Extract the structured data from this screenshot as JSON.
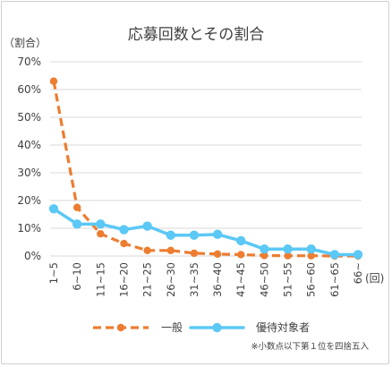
{
  "chart_data": {
    "type": "line",
    "title": "応募回数とその割合",
    "ylabel": "（割合）",
    "xlabel": "(回)",
    "categories": [
      "1~5",
      "6~10",
      "11~15",
      "16~20",
      "21~25",
      "26~30",
      "31~35",
      "36~40",
      "41~45",
      "46~50",
      "51~55",
      "56~60",
      "61~65",
      "66~"
    ],
    "ylim": [
      0,
      70
    ],
    "yticks": [
      "0%",
      "10%",
      "20%",
      "30%",
      "40%",
      "50%",
      "60%",
      "70%"
    ],
    "grid": true,
    "legend": "bottom",
    "series": [
      {
        "name": "一般",
        "style": "dashed",
        "color": "#ED7D31",
        "values": [
          63,
          17.5,
          8,
          4.5,
          2,
          2,
          1,
          0.7,
          0.5,
          0.2,
          0.1,
          0.1,
          0,
          0
        ]
      },
      {
        "name": "優待対象者",
        "style": "solid",
        "color": "#5BC8F5",
        "values": [
          17,
          11.5,
          11.5,
          9.5,
          10.8,
          7.5,
          7.5,
          7.8,
          5.5,
          2.5,
          2.5,
          2.5,
          0.5,
          0.5
        ]
      }
    ],
    "footnote": "※小数点以下第１位を四捨五入"
  }
}
